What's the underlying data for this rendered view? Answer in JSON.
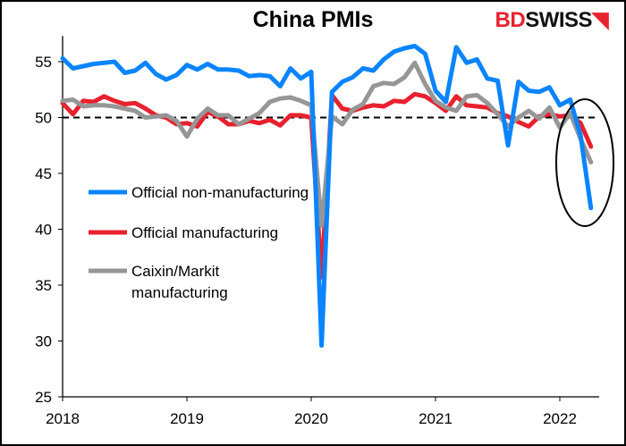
{
  "chart_data": {
    "type": "line",
    "title": "China PMIs",
    "xlabel": "",
    "ylabel": "",
    "ylim": [
      25,
      57
    ],
    "yticks": [
      "25",
      "30",
      "35",
      "40",
      "45",
      "50",
      "55"
    ],
    "xticks": [
      "2018",
      "2019",
      "2020",
      "2021",
      "2022"
    ],
    "x_start": "2018-01",
    "x_frequency": "monthly",
    "reference_line": {
      "value": 50,
      "style": "dashed",
      "color": "#000000"
    },
    "legend_placement": "center-left",
    "annotation": "ellipse around latest readings (2022)",
    "series": [
      {
        "name": "Official non-manufacturing",
        "color": "#0a84ff",
        "values": [
          55.3,
          54.4,
          54.6,
          54.8,
          54.9,
          55.0,
          54.0,
          54.2,
          54.9,
          53.9,
          53.4,
          53.8,
          54.7,
          54.3,
          54.8,
          54.3,
          54.3,
          54.2,
          53.7,
          53.8,
          53.7,
          52.8,
          54.4,
          53.5,
          54.1,
          29.6,
          52.3,
          53.2,
          53.6,
          54.4,
          54.2,
          55.2,
          55.9,
          56.2,
          56.4,
          55.7,
          52.4,
          51.4,
          56.3,
          54.9,
          55.2,
          53.5,
          53.3,
          47.5,
          53.2,
          52.4,
          52.3,
          52.7,
          51.1,
          51.6,
          48.4,
          41.9
        ]
      },
      {
        "name": "Official manufacturing",
        "color": "#e8212e",
        "values": [
          51.3,
          50.3,
          51.5,
          51.4,
          51.9,
          51.5,
          51.2,
          51.3,
          50.8,
          50.2,
          50.0,
          49.4,
          49.5,
          49.2,
          50.5,
          50.1,
          49.4,
          49.4,
          49.7,
          49.5,
          49.8,
          49.3,
          50.2,
          50.2,
          50.0,
          35.7,
          52.0,
          50.8,
          50.6,
          50.9,
          51.1,
          51.0,
          51.5,
          51.4,
          52.1,
          51.9,
          51.3,
          50.6,
          51.9,
          51.1,
          51.0,
          50.9,
          50.4,
          50.1,
          49.6,
          49.2,
          50.1,
          50.3,
          50.1,
          50.2,
          49.5,
          47.4
        ]
      },
      {
        "name": "Caixin/Markit manufacturing",
        "name_lines": [
          "Caixin/Markit",
          "manufacturing"
        ],
        "color": "#969696",
        "values": [
          51.5,
          51.6,
          51.0,
          51.1,
          51.1,
          51.0,
          50.8,
          50.6,
          50.0,
          50.1,
          50.2,
          49.7,
          48.3,
          49.9,
          50.8,
          50.2,
          50.2,
          49.4,
          49.9,
          50.4,
          51.4,
          51.7,
          51.8,
          51.5,
          51.1,
          40.3,
          50.1,
          49.4,
          50.7,
          51.2,
          52.8,
          53.1,
          53.0,
          53.6,
          54.9,
          53.0,
          51.5,
          50.9,
          50.6,
          51.9,
          52.0,
          51.3,
          50.3,
          49.2,
          50.0,
          50.6,
          49.9,
          50.9,
          49.1,
          50.4,
          48.1,
          46.0
        ]
      }
    ]
  },
  "logo": {
    "part1": "BD",
    "part2": "SWISS"
  }
}
